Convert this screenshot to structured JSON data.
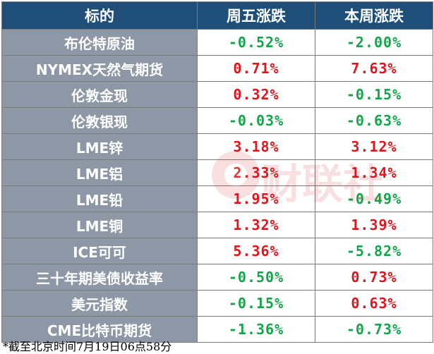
{
  "table": {
    "headers": [
      "标的",
      "周五涨跌",
      "本周涨跌"
    ],
    "rows": [
      {
        "name": "布伦特原油",
        "friday": "-0.52%",
        "week": "-2.00%",
        "friday_dir": "neg",
        "week_dir": "neg"
      },
      {
        "name": "NYMEX天然气期货",
        "friday": "0.71%",
        "week": "7.63%",
        "friday_dir": "pos",
        "week_dir": "pos"
      },
      {
        "name": "伦敦金现",
        "friday": "0.32%",
        "week": "-0.15%",
        "friday_dir": "pos",
        "week_dir": "neg"
      },
      {
        "name": "伦敦银现",
        "friday": "-0.03%",
        "week": "-0.63%",
        "friday_dir": "neg",
        "week_dir": "neg"
      },
      {
        "name": "LME锌",
        "friday": "3.18%",
        "week": "3.12%",
        "friday_dir": "pos",
        "week_dir": "pos"
      },
      {
        "name": "LME铝",
        "friday": "2.33%",
        "week": "1.34%",
        "friday_dir": "pos",
        "week_dir": "pos"
      },
      {
        "name": "LME铅",
        "friday": "1.95%",
        "week": "-0.49%",
        "friday_dir": "pos",
        "week_dir": "neg"
      },
      {
        "name": "LME铜",
        "friday": "1.32%",
        "week": "1.39%",
        "friday_dir": "pos",
        "week_dir": "pos"
      },
      {
        "name": "ICE可可",
        "friday": "5.36%",
        "week": "-5.82%",
        "friday_dir": "pos",
        "week_dir": "neg"
      },
      {
        "name": "三十年期美债收益率",
        "friday": "-0.50%",
        "week": "0.73%",
        "friday_dir": "neg",
        "week_dir": "pos"
      },
      {
        "name": "美元指数",
        "friday": "-0.15%",
        "week": "0.63%",
        "friday_dir": "neg",
        "week_dir": "pos"
      },
      {
        "name": "CME比特币期货",
        "friday": "-1.36%",
        "week": "-0.73%",
        "friday_dir": "neg",
        "week_dir": "neg"
      }
    ]
  },
  "watermark": {
    "text": "财联社",
    "icon": "cls-logo-icon"
  },
  "footnote": "*截至北京时间7月19日06点58分",
  "colors": {
    "header_bg": "#1f4e79",
    "label_bg": "#8e97a5",
    "up": "#e3141b",
    "down": "#13a54a"
  }
}
